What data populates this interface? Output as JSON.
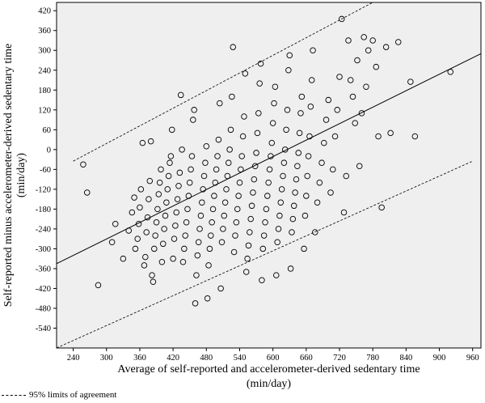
{
  "chart_data": {
    "type": "scatter",
    "xlabel": "Average of self-reported and accelerometer-derived sedentary time",
    "xlabel_unit": "(min/day)",
    "ylabel": "Self-reported minus accelerometer-derived sedentary time",
    "ylabel_unit": "(min/day)",
    "xlim": [
      210,
      975
    ],
    "ylim": [
      -600,
      445
    ],
    "xticks": [
      240,
      300,
      360,
      420,
      480,
      540,
      600,
      660,
      720,
      780,
      840,
      900,
      960
    ],
    "yticks": [
      420,
      360,
      300,
      240,
      180,
      120,
      60,
      0,
      -60,
      -120,
      -180,
      -240,
      -300,
      -360,
      -420,
      -480,
      -540
    ],
    "background": "#efefef",
    "marker_color": "#000000",
    "regression_line": {
      "x": [
        210,
        975
      ],
      "y": [
        -345,
        290
      ]
    },
    "limits_of_agreement": {
      "name": "95% limits of agreement",
      "upper": {
        "x": [
          240,
          780
        ],
        "y": [
          -35,
          445
        ]
      },
      "lower": {
        "x": [
          210,
          960
        ],
        "y": [
          -600,
          -35
        ]
      }
    },
    "points": [
      [
        258,
        -45
      ],
      [
        265,
        -130
      ],
      [
        285,
        -410
      ],
      [
        310,
        -280
      ],
      [
        316,
        -225
      ],
      [
        330,
        -330
      ],
      [
        340,
        -245
      ],
      [
        346,
        -190
      ],
      [
        350,
        -145
      ],
      [
        352,
        -300
      ],
      [
        356,
        -270
      ],
      [
        358,
        -225
      ],
      [
        360,
        -175
      ],
      [
        362,
        -120
      ],
      [
        365,
        20
      ],
      [
        368,
        -350
      ],
      [
        370,
        -325
      ],
      [
        372,
        -250
      ],
      [
        374,
        -205
      ],
      [
        376,
        -150
      ],
      [
        378,
        -95
      ],
      [
        380,
        25
      ],
      [
        382,
        -380
      ],
      [
        384,
        -400
      ],
      [
        386,
        -300
      ],
      [
        388,
        -260
      ],
      [
        390,
        -220
      ],
      [
        392,
        -180
      ],
      [
        394,
        -135
      ],
      [
        396,
        -100
      ],
      [
        398,
        -60
      ],
      [
        400,
        -340
      ],
      [
        402,
        -285
      ],
      [
        404,
        -240
      ],
      [
        406,
        -200
      ],
      [
        408,
        -160
      ],
      [
        410,
        -120
      ],
      [
        412,
        -80
      ],
      [
        414,
        -40
      ],
      [
        416,
        -20
      ],
      [
        418,
        60
      ],
      [
        420,
        -330
      ],
      [
        422,
        -270
      ],
      [
        424,
        -230
      ],
      [
        426,
        -190
      ],
      [
        428,
        -150
      ],
      [
        430,
        -110
      ],
      [
        432,
        -70
      ],
      [
        434,
        165
      ],
      [
        436,
        0
      ],
      [
        438,
        -340
      ],
      [
        440,
        -300
      ],
      [
        442,
        -260
      ],
      [
        444,
        -220
      ],
      [
        446,
        -180
      ],
      [
        448,
        -140
      ],
      [
        450,
        -100
      ],
      [
        452,
        -60
      ],
      [
        454,
        -20
      ],
      [
        456,
        90
      ],
      [
        458,
        120
      ],
      [
        460,
        -465
      ],
      [
        462,
        -380
      ],
      [
        464,
        -320
      ],
      [
        466,
        -280
      ],
      [
        468,
        -240
      ],
      [
        470,
        -200
      ],
      [
        472,
        -160
      ],
      [
        474,
        -120
      ],
      [
        476,
        -80
      ],
      [
        478,
        -40
      ],
      [
        480,
        10
      ],
      [
        482,
        -450
      ],
      [
        484,
        -350
      ],
      [
        486,
        -300
      ],
      [
        488,
        -260
      ],
      [
        490,
        -220
      ],
      [
        492,
        -180
      ],
      [
        494,
        -140
      ],
      [
        496,
        -100
      ],
      [
        498,
        -60
      ],
      [
        500,
        -20
      ],
      [
        502,
        30
      ],
      [
        504,
        140
      ],
      [
        506,
        -420
      ],
      [
        508,
        -280
      ],
      [
        510,
        -240
      ],
      [
        512,
        -200
      ],
      [
        514,
        -160
      ],
      [
        516,
        -120
      ],
      [
        518,
        -80
      ],
      [
        520,
        -40
      ],
      [
        522,
        0
      ],
      [
        524,
        60
      ],
      [
        526,
        160
      ],
      [
        528,
        310
      ],
      [
        530,
        -310
      ],
      [
        532,
        -260
      ],
      [
        534,
        -220
      ],
      [
        536,
        -180
      ],
      [
        538,
        -140
      ],
      [
        540,
        -100
      ],
      [
        542,
        -60
      ],
      [
        544,
        -20
      ],
      [
        546,
        40
      ],
      [
        548,
        100
      ],
      [
        550,
        230
      ],
      [
        552,
        -370
      ],
      [
        554,
        -330
      ],
      [
        556,
        -290
      ],
      [
        558,
        -250
      ],
      [
        560,
        -210
      ],
      [
        562,
        -170
      ],
      [
        564,
        -130
      ],
      [
        566,
        -90
      ],
      [
        568,
        -50
      ],
      [
        570,
        -10
      ],
      [
        572,
        50
      ],
      [
        574,
        110
      ],
      [
        576,
        200
      ],
      [
        578,
        260
      ],
      [
        580,
        -395
      ],
      [
        582,
        -300
      ],
      [
        584,
        -260
      ],
      [
        586,
        -220
      ],
      [
        588,
        -180
      ],
      [
        590,
        -140
      ],
      [
        592,
        -100
      ],
      [
        594,
        -60
      ],
      [
        596,
        -20
      ],
      [
        598,
        20
      ],
      [
        600,
        80
      ],
      [
        602,
        140
      ],
      [
        604,
        190
      ],
      [
        606,
        -380
      ],
      [
        608,
        -280
      ],
      [
        610,
        -240
      ],
      [
        612,
        -200
      ],
      [
        614,
        -160
      ],
      [
        616,
        -120
      ],
      [
        618,
        -80
      ],
      [
        620,
        -40
      ],
      [
        622,
        0
      ],
      [
        624,
        60
      ],
      [
        626,
        120
      ],
      [
        628,
        240
      ],
      [
        630,
        285
      ],
      [
        632,
        -360
      ],
      [
        634,
        -250
      ],
      [
        636,
        -210
      ],
      [
        638,
        -170
      ],
      [
        640,
        -130
      ],
      [
        642,
        -90
      ],
      [
        644,
        -50
      ],
      [
        646,
        -10
      ],
      [
        648,
        50
      ],
      [
        650,
        110
      ],
      [
        652,
        160
      ],
      [
        656,
        -300
      ],
      [
        658,
        -200
      ],
      [
        660,
        -140
      ],
      [
        662,
        -80
      ],
      [
        664,
        -20
      ],
      [
        666,
        40
      ],
      [
        668,
        130
      ],
      [
        670,
        210
      ],
      [
        672,
        300
      ],
      [
        676,
        -250
      ],
      [
        680,
        -160
      ],
      [
        684,
        -100
      ],
      [
        688,
        -40
      ],
      [
        692,
        20
      ],
      [
        696,
        90
      ],
      [
        700,
        150
      ],
      [
        704,
        -130
      ],
      [
        708,
        -60
      ],
      [
        712,
        40
      ],
      [
        716,
        120
      ],
      [
        720,
        220
      ],
      [
        724,
        395
      ],
      [
        728,
        -190
      ],
      [
        732,
        -80
      ],
      [
        736,
        330
      ],
      [
        740,
        210
      ],
      [
        744,
        160
      ],
      [
        748,
        80
      ],
      [
        752,
        270
      ],
      [
        756,
        -50
      ],
      [
        760,
        110
      ],
      [
        764,
        340
      ],
      [
        768,
        190
      ],
      [
        772,
        300
      ],
      [
        780,
        330
      ],
      [
        786,
        250
      ],
      [
        790,
        40
      ],
      [
        796,
        -175
      ],
      [
        804,
        310
      ],
      [
        812,
        50
      ],
      [
        826,
        325
      ],
      [
        848,
        205
      ],
      [
        856,
        40
      ],
      [
        920,
        235
      ]
    ]
  }
}
